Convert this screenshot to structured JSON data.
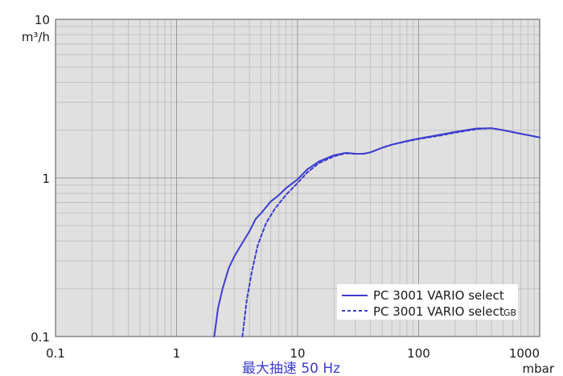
{
  "chart_data": {
    "type": "line",
    "x_scale": "log",
    "y_scale": "log",
    "xlim": [
      0.1,
      1000
    ],
    "ylim": [
      0.1,
      10
    ],
    "x_ticks": [
      "0.1",
      "1",
      "10",
      "100",
      "1000"
    ],
    "y_ticks": [
      "0.1",
      "1",
      "10"
    ],
    "xlabel": "最大抽速 50 Hz",
    "x_unit": "mbar",
    "y_unit": "m³/h",
    "grid": true,
    "legend_position": "bottom-right",
    "series": [
      {
        "name": "PC 3001 VARIO select",
        "name_suffix": "",
        "style": "solid",
        "color": "#3c3ccf",
        "points": [
          [
            2.05,
            0.1
          ],
          [
            2.2,
            0.15
          ],
          [
            2.4,
            0.2
          ],
          [
            2.7,
            0.27
          ],
          [
            3.0,
            0.32
          ],
          [
            3.5,
            0.39
          ],
          [
            4.0,
            0.46
          ],
          [
            4.5,
            0.55
          ],
          [
            5.0,
            0.6
          ],
          [
            6.0,
            0.71
          ],
          [
            7.0,
            0.78
          ],
          [
            8.0,
            0.86
          ],
          [
            10.0,
            0.98
          ],
          [
            12.0,
            1.13
          ],
          [
            15.0,
            1.27
          ],
          [
            20.0,
            1.39
          ],
          [
            25.0,
            1.44
          ],
          [
            30.0,
            1.42
          ],
          [
            35.0,
            1.42
          ],
          [
            40.0,
            1.45
          ],
          [
            50.0,
            1.55
          ],
          [
            60.0,
            1.62
          ],
          [
            80.0,
            1.71
          ],
          [
            100.0,
            1.77
          ],
          [
            150.0,
            1.87
          ],
          [
            200.0,
            1.95
          ],
          [
            300.0,
            2.05
          ],
          [
            400.0,
            2.06
          ],
          [
            500.0,
            2.0
          ],
          [
            700.0,
            1.9
          ],
          [
            1000.0,
            1.8
          ]
        ]
      },
      {
        "name": "PC 3001 VARIO select",
        "name_suffix": "GB",
        "style": "dashed",
        "color": "#3c3ccf",
        "points": [
          [
            3.5,
            0.1
          ],
          [
            3.8,
            0.17
          ],
          [
            4.2,
            0.26
          ],
          [
            4.7,
            0.38
          ],
          [
            5.5,
            0.52
          ],
          [
            6.5,
            0.64
          ],
          [
            8.0,
            0.78
          ],
          [
            10.0,
            0.93
          ],
          [
            12.0,
            1.08
          ],
          [
            15.0,
            1.24
          ],
          [
            20.0,
            1.37
          ],
          [
            25.0,
            1.43
          ],
          [
            30.0,
            1.42
          ],
          [
            35.0,
            1.42
          ],
          [
            40.0,
            1.45
          ],
          [
            50.0,
            1.55
          ],
          [
            60.0,
            1.62
          ],
          [
            80.0,
            1.7
          ],
          [
            100.0,
            1.76
          ],
          [
            150.0,
            1.85
          ],
          [
            200.0,
            1.93
          ],
          [
            300.0,
            2.03
          ],
          [
            400.0,
            2.06
          ],
          [
            500.0,
            2.0
          ],
          [
            700.0,
            1.9
          ],
          [
            1000.0,
            1.8
          ]
        ]
      }
    ]
  }
}
